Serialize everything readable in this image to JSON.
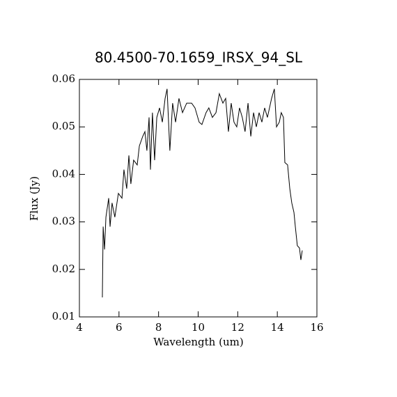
{
  "chart_data": {
    "type": "line",
    "title": "80.4500-70.1659_IRSX_94_SL",
    "xlabel": "Wavelength (um)",
    "ylabel": "Flux (Jy)",
    "xlim": [
      4,
      16
    ],
    "ylim": [
      0.01,
      0.06
    ],
    "xticks": [
      4,
      6,
      8,
      10,
      12,
      14,
      16
    ],
    "yticks": [
      0.01,
      0.02,
      0.03,
      0.04,
      0.05,
      0.06
    ],
    "grid": false,
    "series": [
      {
        "color": "#000000",
        "x": [
          5.16,
          5.2,
          5.27,
          5.34,
          5.48,
          5.55,
          5.65,
          5.79,
          5.97,
          6.15,
          6.25,
          6.39,
          6.5,
          6.6,
          6.74,
          6.92,
          7.03,
          7.2,
          7.31,
          7.41,
          7.52,
          7.59,
          7.69,
          7.8,
          7.91,
          8.05,
          8.19,
          8.33,
          8.43,
          8.57,
          8.71,
          8.86,
          9.03,
          9.21,
          9.42,
          9.67,
          9.84,
          10.05,
          10.19,
          10.4,
          10.54,
          10.72,
          10.9,
          11.07,
          11.25,
          11.39,
          11.53,
          11.67,
          11.81,
          11.95,
          12.09,
          12.23,
          12.37,
          12.52,
          12.66,
          12.8,
          12.94,
          13.08,
          13.22,
          13.36,
          13.5,
          13.71,
          13.85,
          13.96,
          14.1,
          14.2,
          14.31,
          14.38,
          14.52,
          14.63,
          14.73,
          14.84,
          14.91,
          15.01,
          15.12,
          15.19,
          15.26
        ],
        "values": [
          0.0141,
          0.029,
          0.0242,
          0.031,
          0.035,
          0.029,
          0.034,
          0.031,
          0.036,
          0.035,
          0.041,
          0.037,
          0.044,
          0.038,
          0.043,
          0.042,
          0.046,
          0.048,
          0.049,
          0.045,
          0.052,
          0.041,
          0.053,
          0.043,
          0.052,
          0.054,
          0.051,
          0.056,
          0.058,
          0.045,
          0.055,
          0.051,
          0.056,
          0.053,
          0.055,
          0.055,
          0.054,
          0.051,
          0.0505,
          0.053,
          0.054,
          0.052,
          0.053,
          0.057,
          0.055,
          0.056,
          0.049,
          0.055,
          0.051,
          0.05,
          0.054,
          0.052,
          0.049,
          0.055,
          0.048,
          0.053,
          0.05,
          0.053,
          0.051,
          0.054,
          0.052,
          0.056,
          0.058,
          0.05,
          0.051,
          0.053,
          0.052,
          0.0425,
          0.042,
          0.037,
          0.034,
          0.032,
          0.029,
          0.025,
          0.0245,
          0.022,
          0.024
        ]
      }
    ]
  }
}
